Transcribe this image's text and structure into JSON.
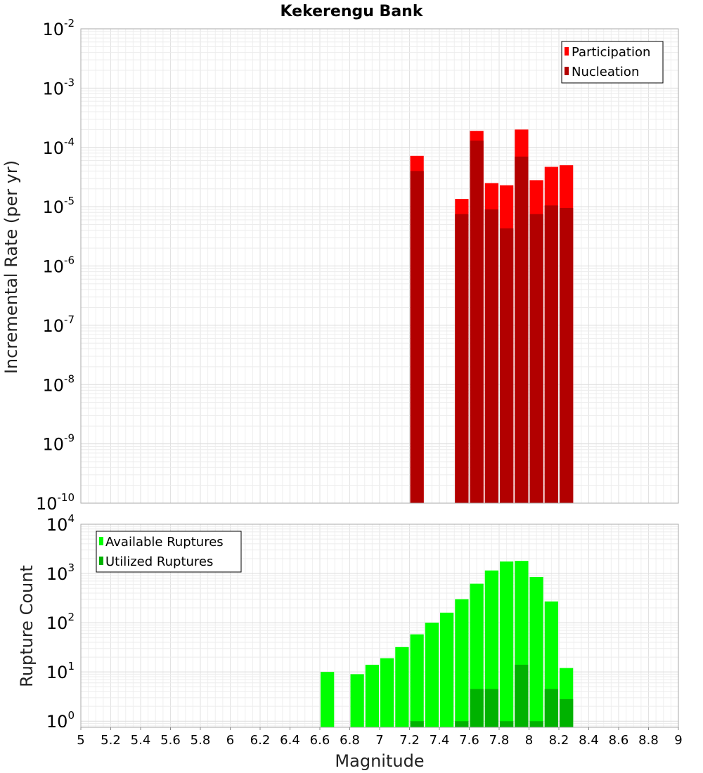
{
  "chart_data": [
    {
      "type": "bar",
      "title": "Kekerengu Bank",
      "xlabel": "Magnitude",
      "ylabel": "Incremental Rate (per yr)",
      "yscale": "log",
      "xlim": [
        5,
        9
      ],
      "ylim": [
        1e-10,
        0.01
      ],
      "bin_width": 0.1,
      "grid": true,
      "legend_position": "top-right",
      "y_ticks": [
        {
          "base": "10",
          "exp": "-2"
        },
        {
          "base": "10",
          "exp": "-3"
        },
        {
          "base": "10",
          "exp": "-4"
        },
        {
          "base": "10",
          "exp": "-5"
        },
        {
          "base": "10",
          "exp": "-6"
        },
        {
          "base": "10",
          "exp": "-7"
        },
        {
          "base": "10",
          "exp": "-8"
        },
        {
          "base": "10",
          "exp": "-9"
        },
        {
          "base": "10",
          "exp": "-10"
        }
      ],
      "series": [
        {
          "name": "Participation",
          "color": "#ff0000",
          "points": [
            {
              "x": 7.25,
              "y": 7.2e-05
            },
            {
              "x": 7.55,
              "y": 1.35e-05
            },
            {
              "x": 7.65,
              "y": 0.00019
            },
            {
              "x": 7.75,
              "y": 2.5e-05
            },
            {
              "x": 7.85,
              "y": 2.3e-05
            },
            {
              "x": 7.95,
              "y": 0.0002
            },
            {
              "x": 8.05,
              "y": 2.8e-05
            },
            {
              "x": 8.15,
              "y": 4.7e-05
            },
            {
              "x": 8.25,
              "y": 5e-05
            }
          ]
        },
        {
          "name": "Nucleation",
          "color": "#b20000",
          "points": [
            {
              "x": 7.25,
              "y": 4e-05
            },
            {
              "x": 7.55,
              "y": 7.5e-06
            },
            {
              "x": 7.65,
              "y": 0.00013
            },
            {
              "x": 7.75,
              "y": 9e-06
            },
            {
              "x": 7.85,
              "y": 4.3e-06
            },
            {
              "x": 7.95,
              "y": 7e-05
            },
            {
              "x": 8.05,
              "y": 7.5e-06
            },
            {
              "x": 8.15,
              "y": 1.05e-05
            },
            {
              "x": 8.25,
              "y": 9.5e-06
            }
          ]
        }
      ]
    },
    {
      "type": "bar",
      "xlabel": "Magnitude",
      "ylabel": "Rupture Count",
      "yscale": "log",
      "xlim": [
        5,
        9
      ],
      "ylim": [
        0.75,
        10000
      ],
      "bin_width": 0.1,
      "grid": true,
      "legend_position": "top-left",
      "y_ticks": [
        {
          "base": "10",
          "exp": "4"
        },
        {
          "base": "10",
          "exp": "3"
        },
        {
          "base": "10",
          "exp": "2"
        },
        {
          "base": "10",
          "exp": "1"
        },
        {
          "base": "10",
          "exp": "0"
        }
      ],
      "x_ticks": [
        "5",
        "5.2",
        "5.4",
        "5.6",
        "5.8",
        "6",
        "6.2",
        "6.4",
        "6.6",
        "6.8",
        "7",
        "7.2",
        "7.4",
        "7.6",
        "7.8",
        "8",
        "8.2",
        "8.4",
        "8.6",
        "8.8",
        "9"
      ],
      "series": [
        {
          "name": "Available Ruptures",
          "color": "#00ff00",
          "points": [
            {
              "x": 6.65,
              "y": 10
            },
            {
              "x": 6.85,
              "y": 9
            },
            {
              "x": 6.95,
              "y": 14
            },
            {
              "x": 7.05,
              "y": 19
            },
            {
              "x": 7.15,
              "y": 32
            },
            {
              "x": 7.25,
              "y": 58
            },
            {
              "x": 7.35,
              "y": 100
            },
            {
              "x": 7.45,
              "y": 160
            },
            {
              "x": 7.55,
              "y": 300
            },
            {
              "x": 7.65,
              "y": 620
            },
            {
              "x": 7.75,
              "y": 1150
            },
            {
              "x": 7.85,
              "y": 1750
            },
            {
              "x": 7.95,
              "y": 1800
            },
            {
              "x": 8.05,
              "y": 850
            },
            {
              "x": 8.15,
              "y": 270
            },
            {
              "x": 8.25,
              "y": 12
            }
          ]
        },
        {
          "name": "Utilized Ruptures",
          "color": "#00b200",
          "points": [
            {
              "x": 7.25,
              "y": 1
            },
            {
              "x": 7.55,
              "y": 1
            },
            {
              "x": 7.65,
              "y": 4.5
            },
            {
              "x": 7.75,
              "y": 4.5
            },
            {
              "x": 7.85,
              "y": 1
            },
            {
              "x": 7.95,
              "y": 14
            },
            {
              "x": 8.05,
              "y": 1
            },
            {
              "x": 8.15,
              "y": 4.5
            },
            {
              "x": 8.25,
              "y": 2.8
            }
          ]
        }
      ]
    }
  ]
}
